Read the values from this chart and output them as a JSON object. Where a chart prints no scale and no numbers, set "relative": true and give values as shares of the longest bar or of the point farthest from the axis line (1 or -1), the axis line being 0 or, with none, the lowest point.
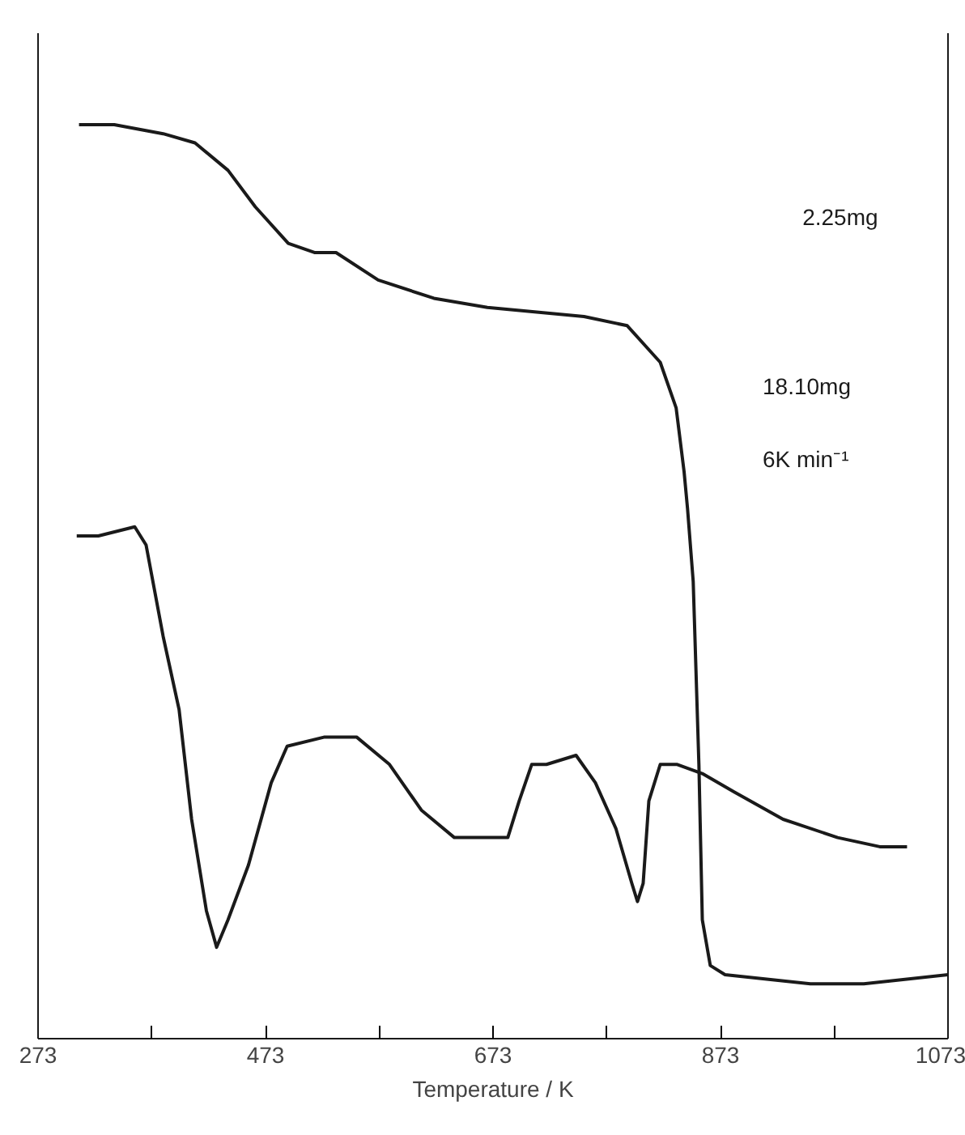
{
  "chart_data": {
    "type": "line",
    "relative": true,
    "xlabel": "Temperature / K",
    "xlim": [
      273,
      1073
    ],
    "xticks": [
      273,
      {
        "value": 373,
        "label": null
      },
      473,
      {
        "value": 573,
        "label": null
      },
      673,
      {
        "value": 773,
        "label": null
      },
      873,
      {
        "value": 973,
        "label": null
      },
      1073
    ],
    "grid": false,
    "marker": "none",
    "line_style": "solid",
    "annotations": [
      "2.25mg",
      "18.10mg",
      "6K min⁻¹"
    ],
    "series": [
      {
        "color": "#1a1a1a",
        "x": [
          309,
          340,
          383,
          411,
          440,
          464,
          493,
          516,
          535,
          572,
          621,
          668,
          753,
          791,
          820,
          834,
          841,
          844,
          849,
          854,
          857,
          864,
          877,
          952,
          999,
          1073
        ],
        "values": [
          1.0,
          1.0,
          0.99,
          0.98,
          0.95,
          0.91,
          0.87,
          0.86,
          0.86,
          0.83,
          0.81,
          0.8,
          0.79,
          0.78,
          0.74,
          0.69,
          0.62,
          0.58,
          0.5,
          0.3,
          0.13,
          0.08,
          0.07,
          0.06,
          0.06,
          0.07
        ]
      },
      {
        "color": "#1a1a1a",
        "x": [
          307,
          326,
          358,
          368,
          383,
          397,
          408,
          421,
          430,
          440,
          458,
          478,
          492,
          525,
          553,
          582,
          610,
          639,
          667,
          686,
          696,
          707,
          720,
          746,
          763,
          781,
          795,
          800,
          805,
          810,
          820,
          835,
          857,
          885,
          928,
          976,
          1013,
          1037
        ],
        "values": [
          0.55,
          0.55,
          0.56,
          0.54,
          0.44,
          0.36,
          0.24,
          0.14,
          0.1,
          0.13,
          0.19,
          0.28,
          0.32,
          0.33,
          0.33,
          0.3,
          0.25,
          0.22,
          0.22,
          0.22,
          0.26,
          0.3,
          0.3,
          0.31,
          0.28,
          0.23,
          0.17,
          0.15,
          0.17,
          0.26,
          0.3,
          0.3,
          0.29,
          0.27,
          0.24,
          0.22,
          0.21,
          0.21
        ]
      }
    ]
  }
}
